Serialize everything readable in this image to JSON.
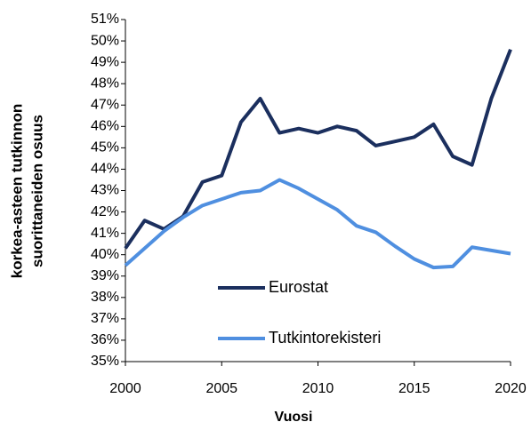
{
  "chart_data": {
    "type": "line",
    "y_label": [
      "korkea-asteen tutkinnon",
      "suorittaneiden osuus"
    ],
    "x_label": "Vuosi",
    "x": [
      2000,
      2001,
      2002,
      2003,
      2004,
      2005,
      2006,
      2007,
      2008,
      2009,
      2010,
      2011,
      2012,
      2013,
      2014,
      2015,
      2016,
      2017,
      2018,
      2019,
      2020
    ],
    "series": [
      {
        "name": "Eurostat",
        "color": "#1b2f5e",
        "values": [
          40.3,
          41.6,
          41.2,
          41.8,
          43.4,
          43.7,
          46.2,
          47.3,
          45.7,
          45.9,
          45.7,
          46.0,
          45.8,
          45.1,
          45.3,
          45.5,
          46.1,
          44.6,
          44.2,
          47.3,
          49.6
        ]
      },
      {
        "name": "Tutkintorekisteri",
        "color": "#4f8fe0",
        "values": [
          39.5,
          40.3,
          41.1,
          41.75,
          42.3,
          42.6,
          42.9,
          43.0,
          43.5,
          43.1,
          42.6,
          42.1,
          41.35,
          41.05,
          40.4,
          39.8,
          39.4,
          39.45,
          40.35,
          40.2,
          40.05
        ]
      }
    ],
    "xlim": [
      2000,
      2020
    ],
    "xticks": [
      2000,
      2005,
      2010,
      2015,
      2020
    ],
    "ylim": [
      35,
      51
    ],
    "yticks": [
      {
        "value": 35,
        "label": "35%"
      },
      {
        "value": 36,
        "label": "36%"
      },
      {
        "value": 37,
        "label": "37%"
      },
      {
        "value": 38,
        "label": "38%"
      },
      {
        "value": 39,
        "label": "39%"
      },
      {
        "value": 40,
        "label": "40%"
      },
      {
        "value": 41,
        "label": "41%"
      },
      {
        "value": 42,
        "label": "42%"
      },
      {
        "value": 43,
        "label": "43%"
      },
      {
        "value": 44,
        "label": "44%"
      },
      {
        "value": 45,
        "label": "45%"
      },
      {
        "value": 46,
        "label": "46%"
      },
      {
        "value": 47,
        "label": "47%"
      },
      {
        "value": 48,
        "label": "48%"
      },
      {
        "value": 49,
        "label": "49%"
      },
      {
        "value": 50,
        "label": "50%"
      },
      {
        "value": 51,
        "label": "51%"
      }
    ],
    "grid": false
  }
}
